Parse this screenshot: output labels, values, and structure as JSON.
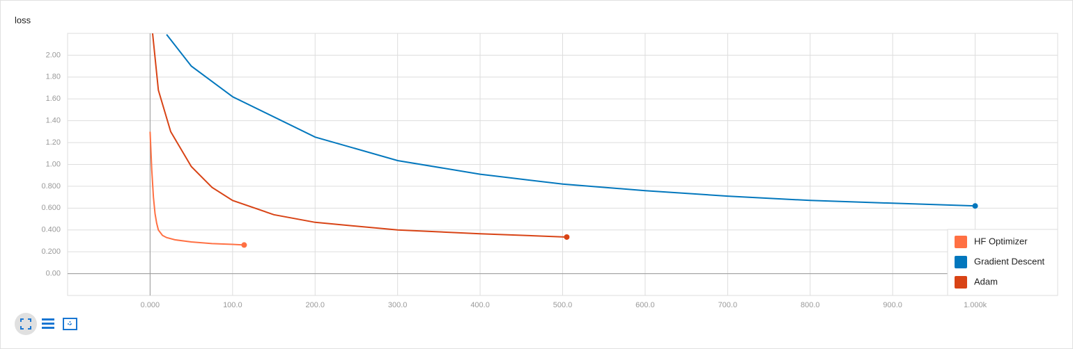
{
  "chart_data": {
    "type": "line",
    "title": "loss",
    "xlim": [
      -100,
      1100
    ],
    "xticks": [
      {
        "value": 0,
        "label": "0.000"
      },
      {
        "value": 100,
        "label": "100.0"
      },
      {
        "value": 200,
        "label": "200.0"
      },
      {
        "value": 300,
        "label": "300.0"
      },
      {
        "value": 400,
        "label": "400.0"
      },
      {
        "value": 500,
        "label": "500.0"
      },
      {
        "value": 600,
        "label": "600.0"
      },
      {
        "value": 700,
        "label": "700.0"
      },
      {
        "value": 800,
        "label": "800.0"
      },
      {
        "value": 900,
        "label": "900.0"
      },
      {
        "value": 1000,
        "label": "1.000k"
      }
    ],
    "ylim": [
      -0.2,
      2.2
    ],
    "yticks": [
      {
        "value": 0,
        "label": "0.00"
      },
      {
        "value": 0.2,
        "label": "0.200"
      },
      {
        "value": 0.4,
        "label": "0.400"
      },
      {
        "value": 0.6,
        "label": "0.600"
      },
      {
        "value": 0.8,
        "label": "0.800"
      },
      {
        "value": 1,
        "label": "1.00"
      },
      {
        "value": 1.2,
        "label": "1.20"
      },
      {
        "value": 1.4,
        "label": "1.40"
      },
      {
        "value": 1.6,
        "label": "1.60"
      },
      {
        "value": 1.8,
        "label": "1.80"
      },
      {
        "value": 2,
        "label": "2.00"
      }
    ],
    "grid": true,
    "legend": "bottom-right",
    "series": [
      {
        "name": "HF Optimizer",
        "color": "#ff7043",
        "x": [
          0,
          2,
          4,
          6,
          8,
          10,
          15,
          20,
          30,
          50,
          75,
          100,
          114
        ],
        "values": [
          1.3,
          0.95,
          0.7,
          0.55,
          0.46,
          0.4,
          0.35,
          0.33,
          0.31,
          0.29,
          0.275,
          0.268,
          0.262
        ]
      },
      {
        "name": "Gradient Descent",
        "color": "#0277bd",
        "x": [
          20,
          50,
          100,
          200,
          300,
          400,
          500,
          600,
          700,
          800,
          900,
          1000
        ],
        "values": [
          2.19,
          1.9,
          1.62,
          1.25,
          1.035,
          0.91,
          0.82,
          0.76,
          0.71,
          0.67,
          0.645,
          0.62
        ]
      },
      {
        "name": "Adam",
        "color": "#d84315",
        "x": [
          3,
          10,
          25,
          50,
          75,
          100,
          150,
          200,
          300,
          400,
          505
        ],
        "values": [
          2.2,
          1.68,
          1.3,
          0.98,
          0.79,
          0.67,
          0.54,
          0.47,
          0.4,
          0.365,
          0.335
        ]
      }
    ]
  }
}
